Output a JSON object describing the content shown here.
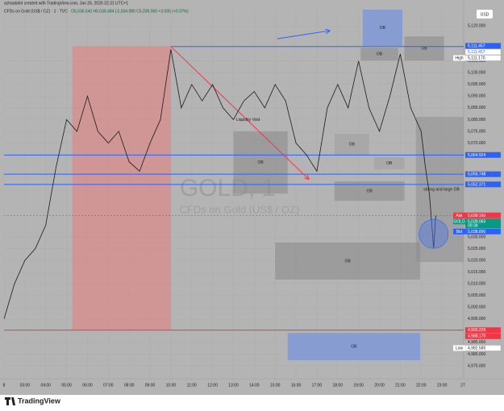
{
  "header": {
    "credit": "azhaatahir created with TradingView.com, Jan 26, 2026 22:31 UTC+1",
    "symbol": "CFDs on Gold (US$ / OZ) · 1 · TVC",
    "ohlc": "O5,035.540 H5,039.484 L5,034.880 C5,039.060 +3.595 (+0.07%)",
    "currency": "USD"
  },
  "watermark": {
    "ticker": "GOLD, 1",
    "description": "CFDs on Gold (US$ / OZ)"
  },
  "chart_data": {
    "type": "line",
    "color": "#1a1a1a",
    "x": [
      2,
      2.5,
      3,
      3.5,
      4,
      4.5,
      5,
      5.5,
      6,
      6.5,
      7,
      7.5,
      8,
      8.5,
      9,
      9.5,
      10,
      10.5,
      11,
      11.5,
      12,
      12.5,
      13,
      13.5,
      14,
      14.5,
      15,
      15.5,
      16,
      16.5,
      17,
      17.5,
      18,
      18.5,
      19,
      19.5,
      20,
      20.5,
      21,
      21.5,
      22,
      22.2,
      22.4,
      22.6,
      22.7
    ],
    "values": [
      4995,
      5010,
      5020,
      5025,
      5035,
      5060,
      5080,
      5075,
      5090,
      5075,
      5070,
      5075,
      5062,
      5058,
      5070,
      5080,
      5110,
      5085,
      5095,
      5088,
      5095,
      5085,
      5080,
      5088,
      5092,
      5085,
      5095,
      5088,
      5070,
      5065,
      5058,
      5085,
      5095,
      5085,
      5105,
      5085,
      5075,
      5090,
      5108,
      5085,
      5075,
      5060,
      5048,
      5025,
      5039.06
    ],
    "xlim": [
      2,
      24.04
    ],
    "ylim": [
      4969.5,
      5126.9
    ],
    "xticks": [
      {
        "value": 2,
        "label": "8"
      },
      {
        "value": 3,
        "label": "03:00"
      },
      {
        "value": 4,
        "label": "04:00"
      },
      {
        "value": 5,
        "label": "05:00"
      },
      {
        "value": 6,
        "label": "06:00"
      },
      {
        "value": 7,
        "label": "07:00"
      },
      {
        "value": 8,
        "label": "08:00"
      },
      {
        "value": 9,
        "label": "09:00"
      },
      {
        "value": 10,
        "label": "10:00"
      },
      {
        "value": 11,
        "label": "11:00"
      },
      {
        "value": 12,
        "label": "12:00"
      },
      {
        "value": 13,
        "label": "13:00"
      },
      {
        "value": 14,
        "label": "14:00"
      },
      {
        "value": 15,
        "label": "15:00"
      },
      {
        "value": 16,
        "label": "16:00"
      },
      {
        "value": 17,
        "label": "17:00"
      },
      {
        "value": 18,
        "label": "18:00"
      },
      {
        "value": 19,
        "label": "19:00"
      },
      {
        "value": 20,
        "label": "20:00"
      },
      {
        "value": 21,
        "label": "21:00"
      },
      {
        "value": 22,
        "label": "22:00"
      },
      {
        "value": 23,
        "label": "23:00"
      },
      {
        "value": 24,
        "label": "27"
      }
    ],
    "yticks": [
      {
        "value": 5120,
        "label": "5,120.000"
      },
      {
        "value": 5105,
        "label": "5,105.000"
      },
      {
        "value": 5100,
        "label": "5,100.000"
      },
      {
        "value": 5095,
        "label": "5,095.000"
      },
      {
        "value": 5090,
        "label": "5,090.000"
      },
      {
        "value": 5085,
        "label": "5,085.000"
      },
      {
        "value": 5080,
        "label": "5,080.000"
      },
      {
        "value": 5075,
        "label": "5,075.000"
      },
      {
        "value": 5070,
        "label": "5,070.000"
      },
      {
        "value": 5030,
        "label": "5,030.000"
      },
      {
        "value": 5025,
        "label": "5,025.000"
      },
      {
        "value": 5020,
        "label": "5,020.000"
      },
      {
        "value": 5015,
        "label": "5,015.000"
      },
      {
        "value": 5010,
        "label": "5,010.000"
      },
      {
        "value": 5005,
        "label": "5,005.000"
      },
      {
        "value": 5000,
        "label": "5,000.000"
      },
      {
        "value": 4995,
        "label": "4,995.000"
      },
      {
        "value": 4985,
        "label": "4,985.000"
      },
      {
        "value": 4980,
        "label": "4,980.000"
      },
      {
        "value": 4975,
        "label": "4,975.000"
      }
    ],
    "zones": [
      {
        "x": [
          5.28,
          10
        ],
        "y": [
          5111.4,
          4990.1
        ],
        "color": "rgba(235,120,120,0.5)"
      },
      {
        "label": "OB",
        "x": [
          19.2,
          21.1
        ],
        "y": [
          5126.9,
          5111.4
        ],
        "color": "rgba(120,150,220,0.75)"
      },
      {
        "label": "OB",
        "x": [
          19.1,
          20.9
        ],
        "y": [
          5110.7,
          5105.2
        ],
        "color": "rgba(140,140,140,0.6)"
      },
      {
        "label": "OB",
        "x": [
          21.2,
          23.1
        ],
        "y": [
          5115.5,
          5105.2
        ],
        "color": "rgba(140,140,140,0.6)"
      },
      {
        "label": "OB",
        "x": [
          13,
          15.6
        ],
        "y": [
          5075,
          5048.5
        ],
        "color": "rgba(140,140,140,0.6)"
      },
      {
        "label": "OB",
        "x": [
          17.85,
          19.5
        ],
        "y": [
          5074,
          5065
        ],
        "color": "rgba(160,160,160,0.6)"
      },
      {
        "label": "OB",
        "x": [
          19.75,
          21.2
        ],
        "y": [
          5064,
          5058.8
        ],
        "color": "rgba(160,160,160,0.6)"
      },
      {
        "label": "OB",
        "x": [
          17.85,
          21.2
        ],
        "y": [
          5053.7,
          5045.4
        ],
        "color": "rgba(140,140,140,0.6)"
      },
      {
        "label": "strong and large OB",
        "x": [
          21.75,
          24.2
        ],
        "y": [
          5081.2,
          5019.3
        ],
        "color": "rgba(140,140,140,0.5)"
      },
      {
        "label": "OB",
        "x": [
          15,
          21.95
        ],
        "y": [
          5027.6,
          5011.8
        ],
        "color": "rgba(140,140,140,0.6)"
      },
      {
        "label": "OB",
        "x": [
          15.6,
          21.95
        ],
        "y": [
          4989,
          4977.4
        ],
        "color": "rgba(120,150,220,0.75)"
      }
    ],
    "lines": [
      {
        "x": [
          10,
          24.04
        ],
        "y": [
          5111.17,
          5111.17
        ],
        "color": "#2962ff"
      },
      {
        "x": [
          2,
          24.04
        ],
        "y": [
          5064.924,
          5064.924
        ],
        "color": "#2962ff"
      },
      {
        "x": [
          2,
          24.04
        ],
        "y": [
          5056.748,
          5056.748
        ],
        "color": "#2962ff"
      },
      {
        "x": [
          2,
          24.04
        ],
        "y": [
          5052.371,
          5052.371
        ],
        "color": "#2962ff"
      },
      {
        "x": [
          2,
          24.04
        ],
        "y": [
          4990.229,
          4990.229
        ],
        "color": "#f23645"
      },
      {
        "x": [
          10,
          16.6
        ],
        "y": [
          5111.2,
          5054.7
        ],
        "color": "#f23645",
        "arrow": true
      },
      {
        "x": [
          15.1,
          17.6
        ],
        "y": [
          5114.5,
          5117.9
        ],
        "color": "#2962ff",
        "arrow": true
      }
    ],
    "annotations": [
      {
        "text": "Liquidity Void",
        "x": 13.7,
        "y": 5080
      }
    ],
    "circle": {
      "x": 22.6,
      "y": 5031.3,
      "color": "rgba(80,120,230,0.45)"
    },
    "price_tags": [
      {
        "label": "5,111.457",
        "value": 5111.457,
        "color": "#2962ff",
        "text_color": "#fff"
      },
      {
        "label": "5,111.457",
        "value": 5111.457,
        "color": "#fff",
        "text_color": "#2962ff"
      },
      {
        "prefix": "High",
        "label": "5,111.170",
        "value": 5111.17,
        "color": "#fff",
        "text_color": "#222"
      },
      {
        "label": "5,064.924",
        "value": 5064.924,
        "color": "#2962ff",
        "text_color": "#fff"
      },
      {
        "label": "5,056.748",
        "value": 5056.748,
        "color": "#2962ff",
        "text_color": "#fff"
      },
      {
        "label": "5,052.371",
        "value": 5052.371,
        "color": "#2962ff",
        "text_color": "#fff"
      },
      {
        "prefix": "Ask",
        "label": "5,039.160",
        "value": 5039.16,
        "color": "#f23645",
        "text_color": "#fff"
      },
      {
        "prefix": "GOLD",
        "label": "5,039.060",
        "value": 5039.06,
        "extra": "00:38",
        "color": "#089981",
        "text_color": "#fff"
      },
      {
        "prefix": "Bid",
        "label": "5,038.890",
        "value": 5038.89,
        "color": "#2962ff",
        "text_color": "#fff"
      },
      {
        "label": "4,990.229",
        "value": 4990.229,
        "color": "#f23645",
        "text_color": "#fff"
      },
      {
        "label": "4,988.170",
        "value": 4988.17,
        "color": "#f23645",
        "text_color": "#fff"
      },
      {
        "prefix": "Low",
        "label": "4,982.585",
        "value": 4982.585,
        "color": "#fff",
        "text_color": "#222"
      }
    ]
  },
  "footer": {
    "brand": "TradingView"
  }
}
